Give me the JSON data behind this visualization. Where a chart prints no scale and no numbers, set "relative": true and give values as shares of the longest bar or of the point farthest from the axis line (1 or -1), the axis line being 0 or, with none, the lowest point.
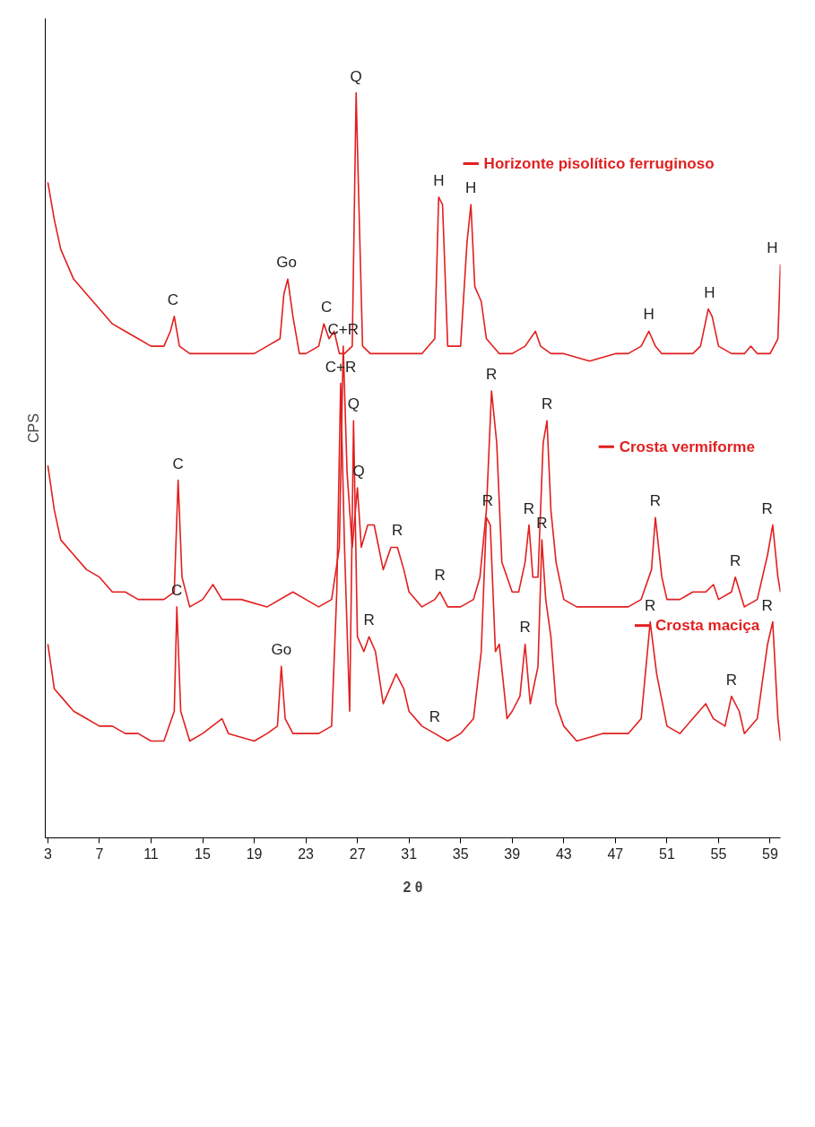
{
  "chart_data": {
    "type": "line",
    "relative": true,
    "xlabel": "2 θ",
    "ylabel": "CPS",
    "xlim": [
      2.8,
      59.8
    ],
    "xticks": [
      3,
      7,
      11,
      15,
      19,
      23,
      27,
      31,
      35,
      39,
      43,
      47,
      51,
      55,
      59
    ],
    "tick_labels": "x",
    "grid": false,
    "legend": "right",
    "marker": "none",
    "line_style": "solid",
    "series": [
      {
        "name": "Horizonte pisolítico ferruginoso",
        "color": "#e21f1f",
        "x": [
          3,
          3.5,
          4,
          5,
          6,
          7,
          8,
          9,
          10,
          11,
          12,
          12.5,
          12.8,
          13.2,
          14,
          16,
          18,
          19,
          20,
          21,
          21.3,
          21.6,
          22,
          22.5,
          23,
          24,
          24.4,
          24.8,
          25.2,
          25.6,
          26,
          26.6,
          26.9,
          27.1,
          27.4,
          28,
          30,
          32,
          33,
          33.3,
          33.6,
          34,
          35,
          35.5,
          35.8,
          36.1,
          36.6,
          37,
          38,
          39,
          40,
          40.8,
          41.2,
          42,
          43,
          45,
          47,
          48,
          49,
          49.6,
          50.1,
          50.6,
          52,
          53,
          53.6,
          54.2,
          54.5,
          55,
          56,
          57,
          57.5,
          58,
          59,
          59.6,
          59.8
        ],
        "values": [
          0.88,
          0.83,
          0.79,
          0.75,
          0.73,
          0.71,
          0.69,
          0.68,
          0.67,
          0.66,
          0.66,
          0.68,
          0.7,
          0.66,
          0.65,
          0.65,
          0.65,
          0.65,
          0.66,
          0.67,
          0.73,
          0.75,
          0.7,
          0.65,
          0.65,
          0.66,
          0.69,
          0.67,
          0.68,
          0.65,
          0.65,
          0.66,
          1.0,
          0.86,
          0.66,
          0.65,
          0.65,
          0.65,
          0.67,
          0.86,
          0.85,
          0.66,
          0.66,
          0.8,
          0.85,
          0.74,
          0.72,
          0.67,
          0.65,
          0.65,
          0.66,
          0.68,
          0.66,
          0.65,
          0.65,
          0.64,
          0.65,
          0.65,
          0.66,
          0.68,
          0.66,
          0.65,
          0.65,
          0.65,
          0.66,
          0.71,
          0.7,
          0.66,
          0.65,
          0.65,
          0.66,
          0.65,
          0.65,
          0.67,
          0.77
        ]
      },
      {
        "name": "Crosta vermiforme",
        "color": "#e21f1f",
        "x": [
          3,
          3.5,
          4,
          5,
          6,
          7,
          8,
          9,
          10,
          11,
          12,
          12.8,
          13.1,
          13.4,
          14,
          15,
          15.8,
          16.5,
          18,
          20,
          22,
          23,
          24,
          25,
          25.6,
          25.9,
          26.2,
          26.6,
          27,
          27.3,
          27.8,
          28.3,
          29,
          29.6,
          30.1,
          30.6,
          31,
          32,
          33,
          33.4,
          34,
          35,
          36,
          36.5,
          37,
          37.4,
          37.8,
          38.2,
          39,
          39.5,
          40,
          40.3,
          40.6,
          41,
          41.4,
          41.7,
          42,
          42.4,
          43,
          44,
          46,
          48,
          49,
          49.8,
          50.1,
          50.6,
          51,
          52,
          53,
          54,
          54.6,
          55,
          56,
          56.3,
          57,
          58,
          58.8,
          59.2,
          59.6,
          59.8
        ],
        "values": [
          0.5,
          0.44,
          0.4,
          0.38,
          0.36,
          0.35,
          0.33,
          0.33,
          0.32,
          0.32,
          0.32,
          0.33,
          0.48,
          0.35,
          0.31,
          0.32,
          0.34,
          0.32,
          0.32,
          0.31,
          0.33,
          0.32,
          0.31,
          0.32,
          0.39,
          0.66,
          0.49,
          0.39,
          0.47,
          0.39,
          0.42,
          0.42,
          0.36,
          0.39,
          0.39,
          0.36,
          0.33,
          0.31,
          0.32,
          0.33,
          0.31,
          0.31,
          0.32,
          0.35,
          0.44,
          0.6,
          0.53,
          0.37,
          0.33,
          0.33,
          0.37,
          0.42,
          0.35,
          0.35,
          0.53,
          0.56,
          0.44,
          0.37,
          0.32,
          0.31,
          0.31,
          0.31,
          0.32,
          0.36,
          0.43,
          0.35,
          0.32,
          0.32,
          0.33,
          0.33,
          0.34,
          0.32,
          0.33,
          0.35,
          0.31,
          0.32,
          0.38,
          0.42,
          0.35,
          0.33
        ]
      },
      {
        "name": "Crosta maciça",
        "color": "#e21f1f",
        "x": [
          3,
          3.5,
          4,
          5,
          6,
          7,
          8,
          9,
          10,
          11,
          12,
          12.8,
          13,
          13.3,
          14,
          15,
          16.5,
          17,
          19,
          20,
          20.8,
          21.1,
          21.4,
          22,
          24,
          25,
          25.4,
          25.7,
          26,
          26.4,
          26.7,
          27,
          27.5,
          27.9,
          28.4,
          29,
          30,
          30.6,
          31,
          32,
          33,
          34,
          35,
          36,
          36.6,
          37,
          37.3,
          37.7,
          38,
          38.6,
          39,
          39.6,
          40,
          40.4,
          41,
          41.3,
          41.6,
          42,
          42.4,
          43,
          44,
          46,
          48,
          49,
          49.7,
          50.2,
          51,
          52,
          53,
          54,
          54.6,
          55.5,
          56,
          56.6,
          57,
          58,
          58.8,
          59.2,
          59.6,
          59.8
        ],
        "values": [
          0.26,
          0.2,
          0.19,
          0.17,
          0.16,
          0.15,
          0.15,
          0.14,
          0.14,
          0.13,
          0.13,
          0.17,
          0.31,
          0.17,
          0.13,
          0.14,
          0.16,
          0.14,
          0.13,
          0.14,
          0.15,
          0.23,
          0.16,
          0.14,
          0.14,
          0.15,
          0.33,
          0.61,
          0.39,
          0.17,
          0.56,
          0.27,
          0.25,
          0.27,
          0.25,
          0.18,
          0.22,
          0.2,
          0.17,
          0.15,
          0.14,
          0.13,
          0.14,
          0.16,
          0.25,
          0.43,
          0.42,
          0.25,
          0.26,
          0.16,
          0.17,
          0.19,
          0.26,
          0.18,
          0.23,
          0.4,
          0.32,
          0.27,
          0.18,
          0.15,
          0.13,
          0.14,
          0.14,
          0.16,
          0.29,
          0.22,
          0.15,
          0.14,
          0.16,
          0.18,
          0.16,
          0.15,
          0.19,
          0.17,
          0.14,
          0.16,
          0.26,
          0.29,
          0.16,
          0.13
        ]
      }
    ],
    "annotations": [
      {
        "text": "C",
        "x": 12.7,
        "y": 0.7
      },
      {
        "text": "Go",
        "x": 21.5,
        "y": 0.75
      },
      {
        "text": "C",
        "x": 24.6,
        "y": 0.69
      },
      {
        "text": "Q",
        "x": 26.9,
        "y": 1.0
      },
      {
        "text": "H",
        "x": 33.3,
        "y": 0.86
      },
      {
        "text": "H",
        "x": 35.8,
        "y": 0.85
      },
      {
        "text": "H",
        "x": 49.6,
        "y": 0.68
      },
      {
        "text": "H",
        "x": 54.3,
        "y": 0.71
      },
      {
        "text": "H",
        "x": 59.6,
        "y": 0.77
      },
      {
        "text": "C",
        "x": 13.1,
        "y": 0.48
      },
      {
        "text": "C+R",
        "x": 25.9,
        "y": 0.66
      },
      {
        "text": "Q",
        "x": 27.1,
        "y": 0.47
      },
      {
        "text": "R",
        "x": 30.1,
        "y": 0.39
      },
      {
        "text": "R",
        "x": 33.4,
        "y": 0.33
      },
      {
        "text": "R",
        "x": 37.4,
        "y": 0.6
      },
      {
        "text": "R",
        "x": 40.3,
        "y": 0.42
      },
      {
        "text": "R",
        "x": 41.7,
        "y": 0.56
      },
      {
        "text": "R",
        "x": 50.1,
        "y": 0.43
      },
      {
        "text": "R",
        "x": 56.3,
        "y": 0.35
      },
      {
        "text": "R",
        "x": 59.2,
        "y": 0.42
      },
      {
        "text": "C",
        "x": 13.0,
        "y": 0.31
      },
      {
        "text": "Go",
        "x": 21.1,
        "y": 0.23
      },
      {
        "text": "C+R",
        "x": 25.7,
        "y": 0.61
      },
      {
        "text": "Q",
        "x": 26.7,
        "y": 0.56
      },
      {
        "text": "R",
        "x": 27.9,
        "y": 0.27
      },
      {
        "text": "R",
        "x": 33.0,
        "y": 0.14
      },
      {
        "text": "R",
        "x": 37.1,
        "y": 0.43
      },
      {
        "text": "R",
        "x": 40.0,
        "y": 0.26
      },
      {
        "text": "R",
        "x": 41.3,
        "y": 0.4
      },
      {
        "text": "R",
        "x": 49.7,
        "y": 0.29
      },
      {
        "text": "R",
        "x": 56.0,
        "y": 0.19
      },
      {
        "text": "R",
        "x": 59.2,
        "y": 0.29
      }
    ]
  }
}
